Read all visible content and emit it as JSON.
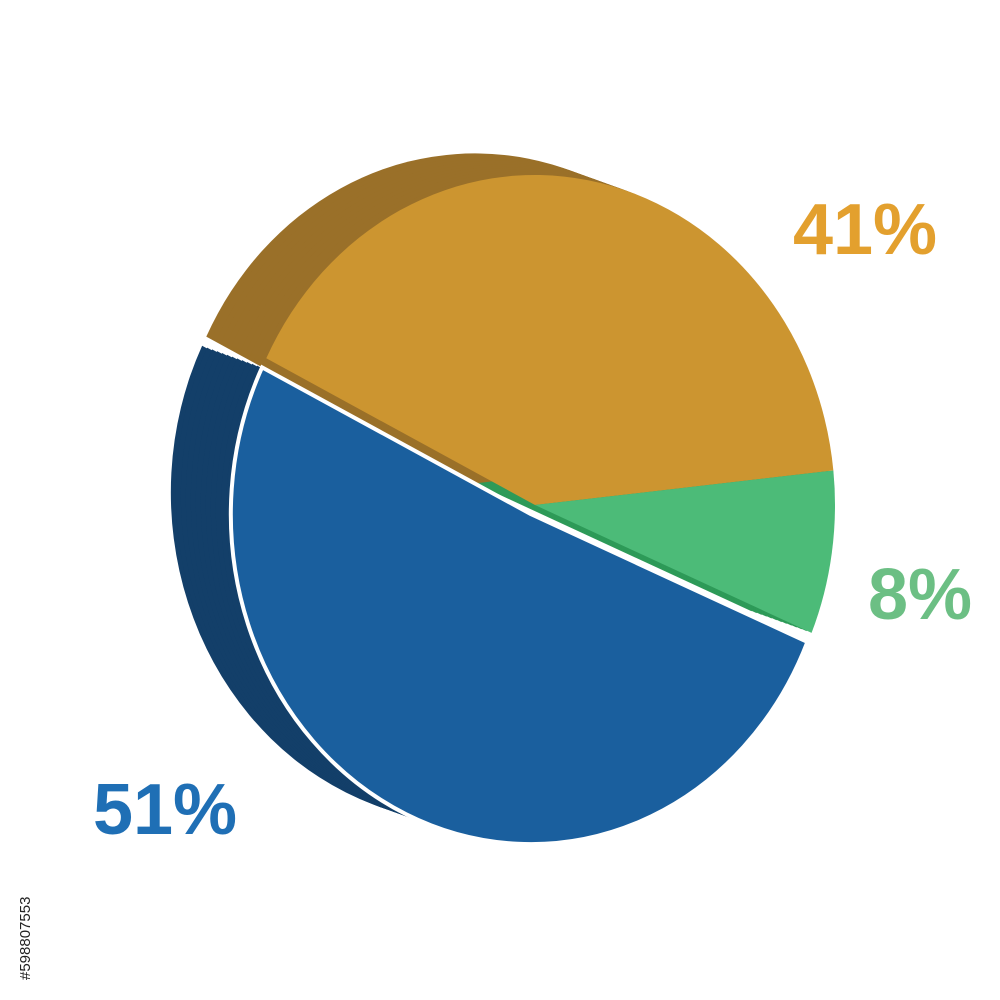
{
  "chart_data": {
    "type": "pie",
    "categories": [
      "51%",
      "41%",
      "8%"
    ],
    "values": [
      51,
      41,
      8
    ],
    "value_labels": [
      "51%",
      "41%",
      "8%"
    ],
    "colors": [
      "#1a5f9e",
      "#cc9530",
      "#4cbb78"
    ],
    "side_colors": [
      "#133f69",
      "#9a7029",
      "#2e9a58"
    ],
    "label_colors": [
      "#1f6fb5",
      "#e3a02e",
      "#6cbf84"
    ]
  },
  "stock_id": "#598807553"
}
